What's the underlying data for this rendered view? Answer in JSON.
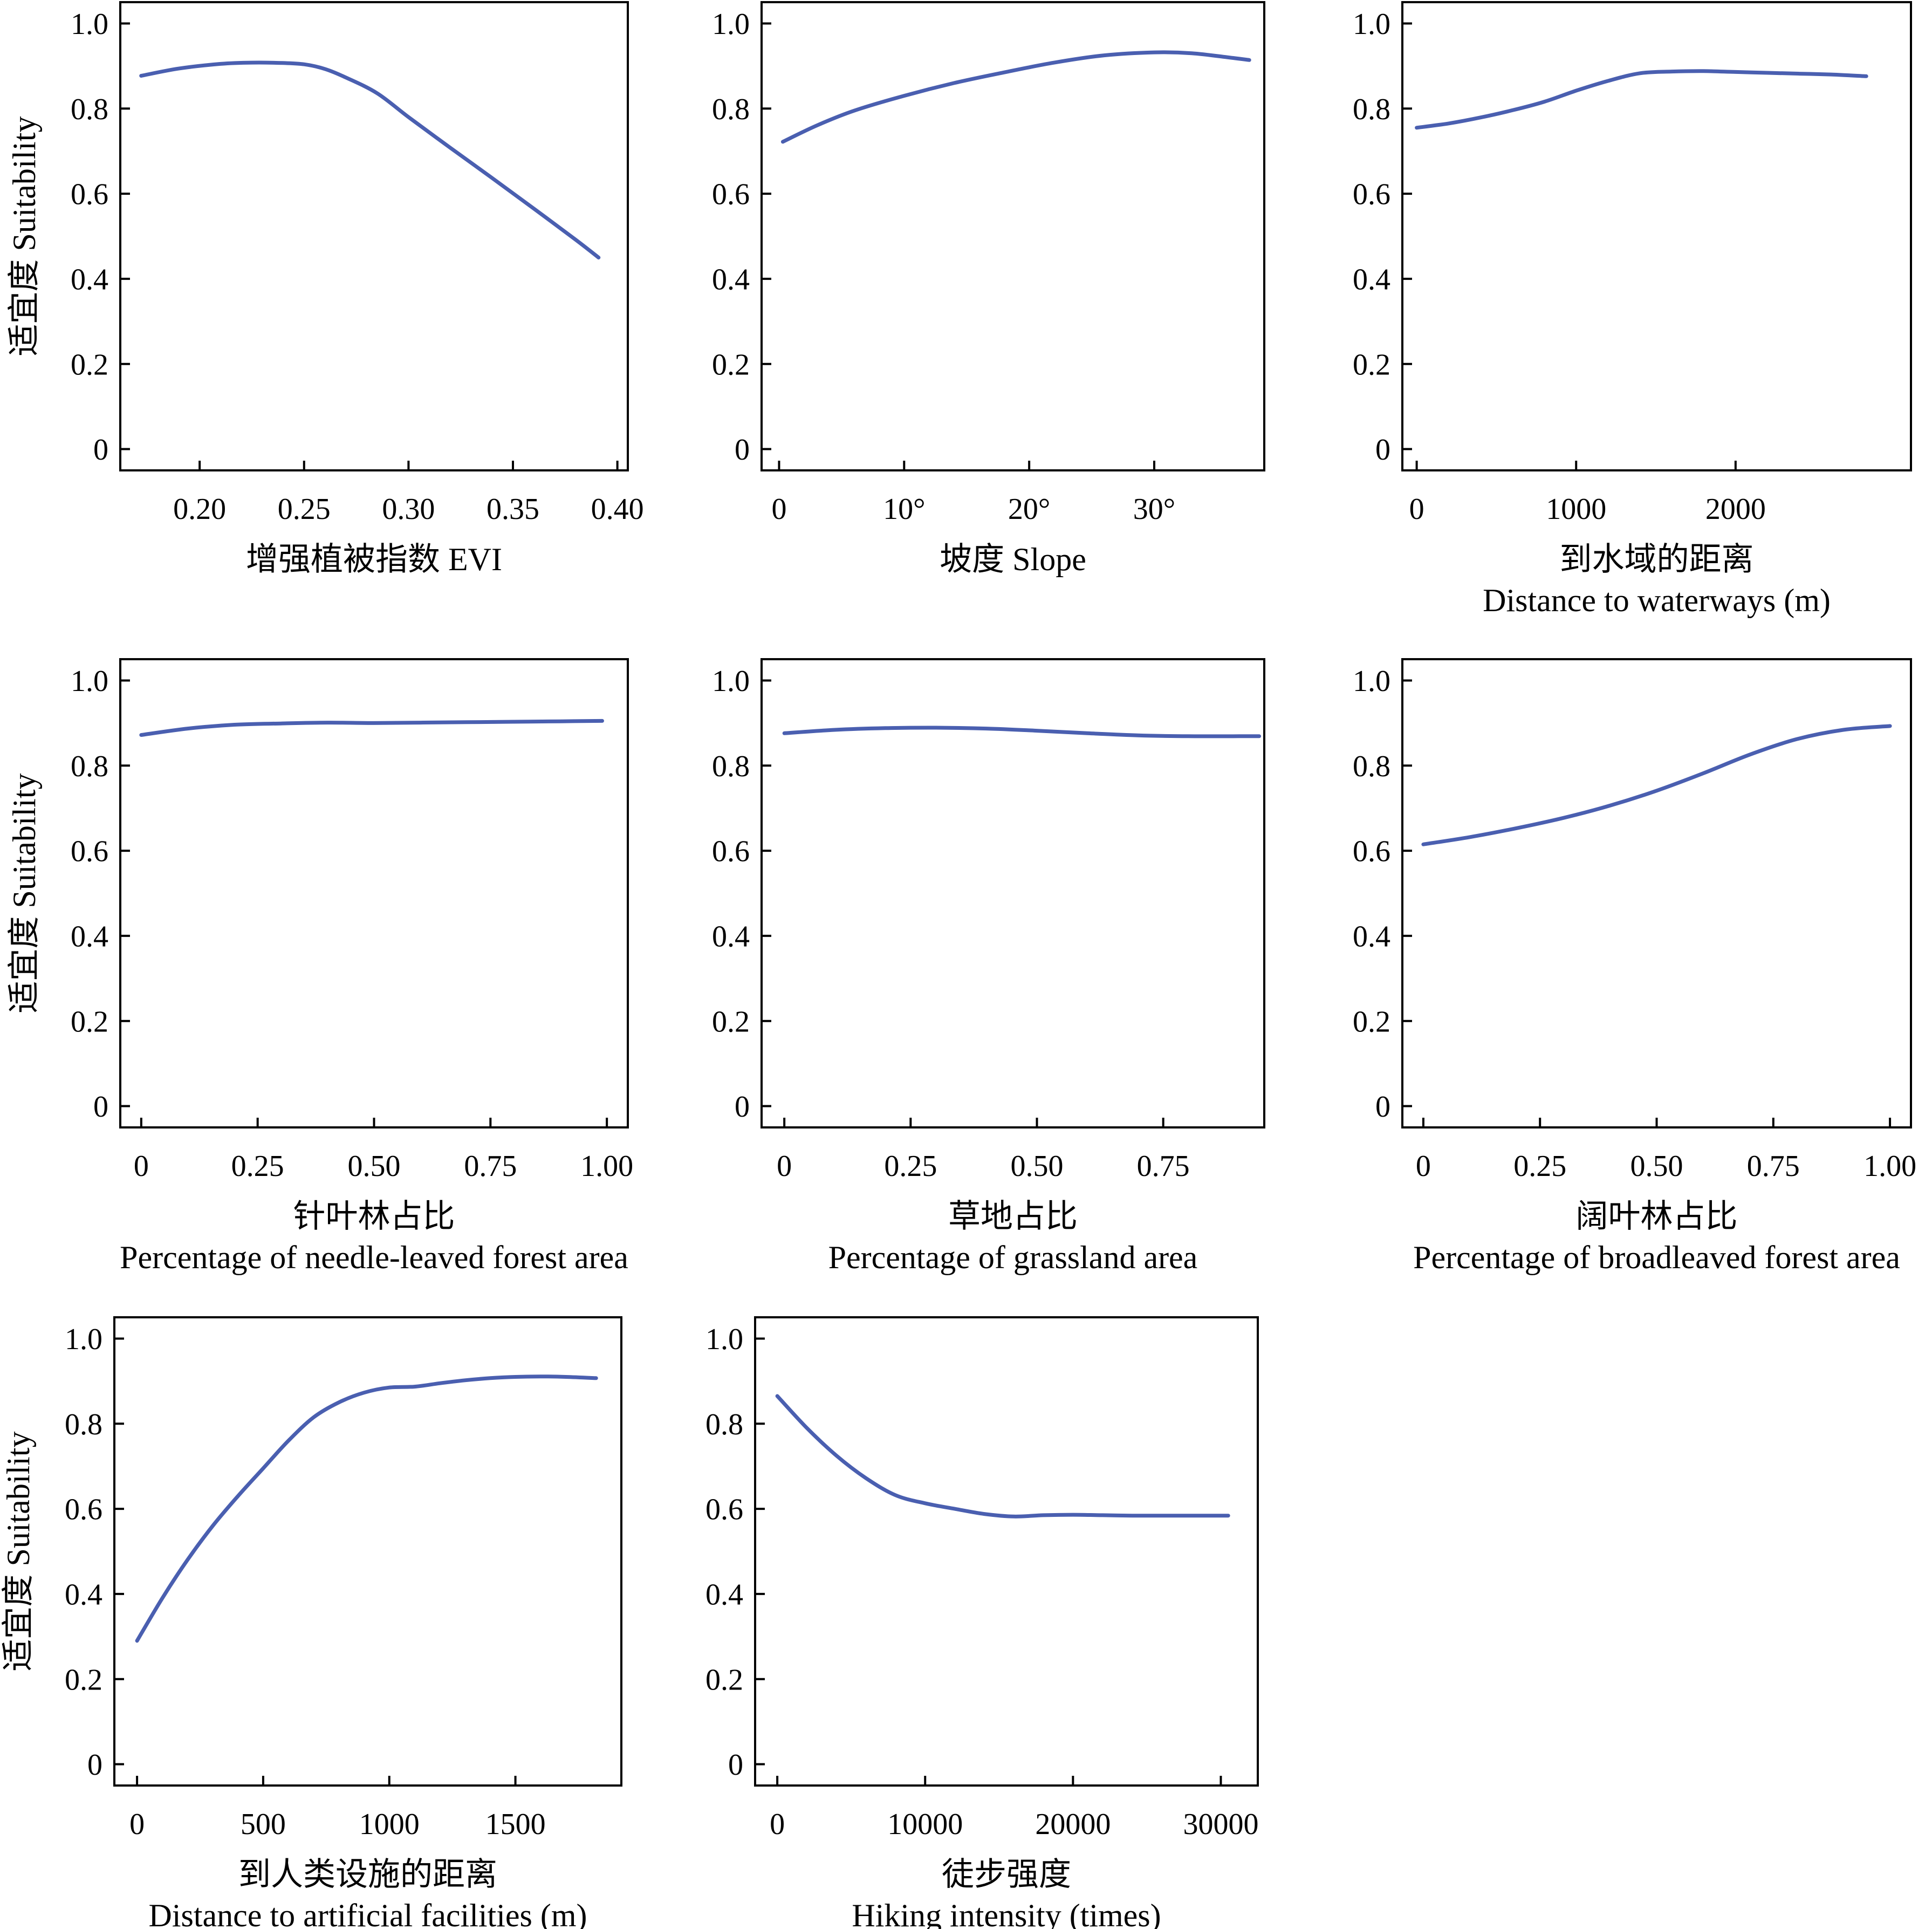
{
  "figure": {
    "curve_color": "#4a5fb0",
    "axis_color": "#000000",
    "background": "#ffffff"
  },
  "chart_data": [
    {
      "type": "line",
      "ylabel": "适宜度 Suitability",
      "xlabel_lines": [
        "增强植被指数 EVI"
      ],
      "xlim": [
        0.162,
        0.405
      ],
      "ylim": [
        -0.05,
        1.05
      ],
      "xticks": [
        0.2,
        0.25,
        0.3,
        0.35,
        0.4
      ],
      "xtick_labels": [
        "0.20",
        "0.25",
        "0.30",
        "0.35",
        "0.40"
      ],
      "yticks": [
        0,
        0.2,
        0.4,
        0.6,
        0.8,
        1.0
      ],
      "ytick_labels": [
        "0",
        "0.2",
        "0.4",
        "0.6",
        "0.8",
        "1.0"
      ],
      "series": [
        {
          "x": [
            0.172,
            0.19,
            0.21,
            0.225,
            0.24,
            0.25,
            0.26,
            0.27,
            0.285,
            0.3,
            0.32,
            0.34,
            0.36,
            0.38,
            0.391
          ],
          "y": [
            0.877,
            0.894,
            0.905,
            0.908,
            0.907,
            0.904,
            0.893,
            0.873,
            0.836,
            0.78,
            0.708,
            0.637,
            0.565,
            0.492,
            0.45
          ]
        }
      ]
    },
    {
      "type": "line",
      "ylabel": "",
      "xlabel_lines": [
        "坡度 Slope"
      ],
      "xlim": [
        -1.4,
        38.8
      ],
      "ylim": [
        -0.05,
        1.05
      ],
      "xticks": [
        0,
        10,
        20,
        30
      ],
      "xtick_labels": [
        "0",
        "10°",
        "20°",
        "30°"
      ],
      "yticks": [
        0,
        0.2,
        0.4,
        0.6,
        0.8,
        1.0
      ],
      "ytick_labels": [
        "0",
        "0.2",
        "0.4",
        "0.6",
        "0.8",
        "1.0"
      ],
      "series": [
        {
          "x": [
            0.3,
            3,
            6,
            10,
            14,
            18,
            22,
            26,
            30,
            33,
            36,
            37.6
          ],
          "y": [
            0.722,
            0.76,
            0.795,
            0.83,
            0.86,
            0.885,
            0.908,
            0.925,
            0.932,
            0.93,
            0.92,
            0.914
          ]
        }
      ]
    },
    {
      "type": "line",
      "ylabel": "",
      "xlabel_lines": [
        "到水域的距离",
        "Distance to waterways (m)"
      ],
      "xlim": [
        -90,
        3100
      ],
      "ylim": [
        -0.05,
        1.05
      ],
      "xticks": [
        0,
        1000,
        2000
      ],
      "xtick_labels": [
        "0",
        "1000",
        "2000"
      ],
      "yticks": [
        0,
        0.2,
        0.4,
        0.6,
        0.8,
        1.0
      ],
      "ytick_labels": [
        "0",
        "0.2",
        "0.4",
        "0.6",
        "0.8",
        "1.0"
      ],
      "series": [
        {
          "x": [
            0,
            200,
            400,
            600,
            800,
            1000,
            1200,
            1400,
            1600,
            1800,
            2000,
            2200,
            2400,
            2600,
            2820
          ],
          "y": [
            0.755,
            0.765,
            0.779,
            0.796,
            0.816,
            0.842,
            0.865,
            0.883,
            0.887,
            0.888,
            0.886,
            0.884,
            0.882,
            0.88,
            0.876
          ]
        }
      ]
    },
    {
      "type": "line",
      "ylabel": "适宜度 Suitability",
      "xlabel_lines": [
        "针叶林占比",
        "Percentage of needle-leaved forest area"
      ],
      "xlim": [
        -0.045,
        1.045
      ],
      "ylim": [
        -0.05,
        1.05
      ],
      "xticks": [
        0,
        0.25,
        0.5,
        0.75,
        1.0
      ],
      "xtick_labels": [
        "0",
        "0.25",
        "0.50",
        "0.75",
        "1.00"
      ],
      "yticks": [
        0,
        0.2,
        0.4,
        0.6,
        0.8,
        1.0
      ],
      "ytick_labels": [
        "0",
        "0.2",
        "0.4",
        "0.6",
        "0.8",
        "1.0"
      ],
      "series": [
        {
          "x": [
            0,
            0.1,
            0.2,
            0.3,
            0.4,
            0.5,
            0.6,
            0.7,
            0.8,
            0.9,
            0.99
          ],
          "y": [
            0.872,
            0.887,
            0.896,
            0.899,
            0.901,
            0.9,
            0.901,
            0.902,
            0.903,
            0.904,
            0.905
          ]
        }
      ]
    },
    {
      "type": "line",
      "ylabel": "",
      "xlabel_lines": [
        "草地占比",
        "Percentage of grassland area"
      ],
      "xlim": [
        -0.045,
        0.95
      ],
      "ylim": [
        -0.05,
        1.05
      ],
      "xticks": [
        0,
        0.25,
        0.5,
        0.75
      ],
      "xtick_labels": [
        "0",
        "0.25",
        "0.50",
        "0.75"
      ],
      "yticks": [
        0,
        0.2,
        0.4,
        0.6,
        0.8,
        1.0
      ],
      "ytick_labels": [
        "0",
        "0.2",
        "0.4",
        "0.6",
        "0.8",
        "1.0"
      ],
      "series": [
        {
          "x": [
            0,
            0.1,
            0.2,
            0.3,
            0.4,
            0.5,
            0.6,
            0.7,
            0.8,
            0.9,
            0.94
          ],
          "y": [
            0.876,
            0.884,
            0.888,
            0.889,
            0.887,
            0.882,
            0.876,
            0.871,
            0.869,
            0.869,
            0.869
          ]
        }
      ]
    },
    {
      "type": "line",
      "ylabel": "",
      "xlabel_lines": [
        "阔叶林占比",
        "Percentage of broadleaved forest area"
      ],
      "xlim": [
        -0.045,
        1.045
      ],
      "ylim": [
        -0.05,
        1.05
      ],
      "xticks": [
        0,
        0.25,
        0.5,
        0.75,
        1.0
      ],
      "xtick_labels": [
        "0",
        "0.25",
        "0.50",
        "0.75",
        "1.00"
      ],
      "yticks": [
        0,
        0.2,
        0.4,
        0.6,
        0.8,
        1.0
      ],
      "ytick_labels": [
        "0",
        "0.2",
        "0.4",
        "0.6",
        "0.8",
        "1.0"
      ],
      "series": [
        {
          "x": [
            0,
            0.1,
            0.2,
            0.3,
            0.4,
            0.5,
            0.6,
            0.7,
            0.8,
            0.9,
            1.0
          ],
          "y": [
            0.615,
            0.632,
            0.653,
            0.677,
            0.706,
            0.741,
            0.782,
            0.826,
            0.862,
            0.884,
            0.893
          ]
        }
      ]
    },
    {
      "type": "line",
      "ylabel": "适宜度 Suitability",
      "xlabel_lines": [
        "到人类设施的距离",
        "Distance to artificial facilities (m)"
      ],
      "xlim": [
        -90,
        1920
      ],
      "ylim": [
        -0.05,
        1.05
      ],
      "xticks": [
        0,
        500,
        1000,
        1500
      ],
      "xtick_labels": [
        "0",
        "500",
        "1000",
        "1500"
      ],
      "yticks": [
        0,
        0.2,
        0.4,
        0.6,
        0.8,
        1.0
      ],
      "ytick_labels": [
        "0",
        "0.2",
        "0.4",
        "0.6",
        "0.8",
        "1.0"
      ],
      "series": [
        {
          "x": [
            0,
            100,
            200,
            300,
            400,
            500,
            600,
            700,
            800,
            900,
            1000,
            1100,
            1200,
            1300,
            1400,
            1500,
            1600,
            1700,
            1820
          ],
          "y": [
            0.29,
            0.39,
            0.48,
            0.56,
            0.63,
            0.695,
            0.76,
            0.815,
            0.85,
            0.873,
            0.885,
            0.887,
            0.895,
            0.902,
            0.907,
            0.91,
            0.911,
            0.91,
            0.907
          ]
        }
      ]
    },
    {
      "type": "line",
      "ylabel": "",
      "xlabel_lines": [
        "徒步强度",
        "Hiking intensity (times)"
      ],
      "xlim": [
        -1500,
        32500
      ],
      "ylim": [
        -0.05,
        1.05
      ],
      "xticks": [
        0,
        10000,
        20000,
        30000
      ],
      "xtick_labels": [
        "0",
        "10000",
        "20000",
        "30000"
      ],
      "yticks": [
        0,
        0.2,
        0.4,
        0.6,
        0.8,
        1.0
      ],
      "ytick_labels": [
        "0",
        "0.2",
        "0.4",
        "0.6",
        "0.8",
        "1.0"
      ],
      "series": [
        {
          "x": [
            0,
            2000,
            4000,
            6000,
            8000,
            10000,
            12000,
            14000,
            16000,
            18000,
            20000,
            22000,
            24000,
            26000,
            28000,
            30500
          ],
          "y": [
            0.865,
            0.79,
            0.725,
            0.672,
            0.632,
            0.613,
            0.6,
            0.588,
            0.582,
            0.585,
            0.586,
            0.585,
            0.584,
            0.584,
            0.584,
            0.584
          ]
        }
      ]
    }
  ]
}
